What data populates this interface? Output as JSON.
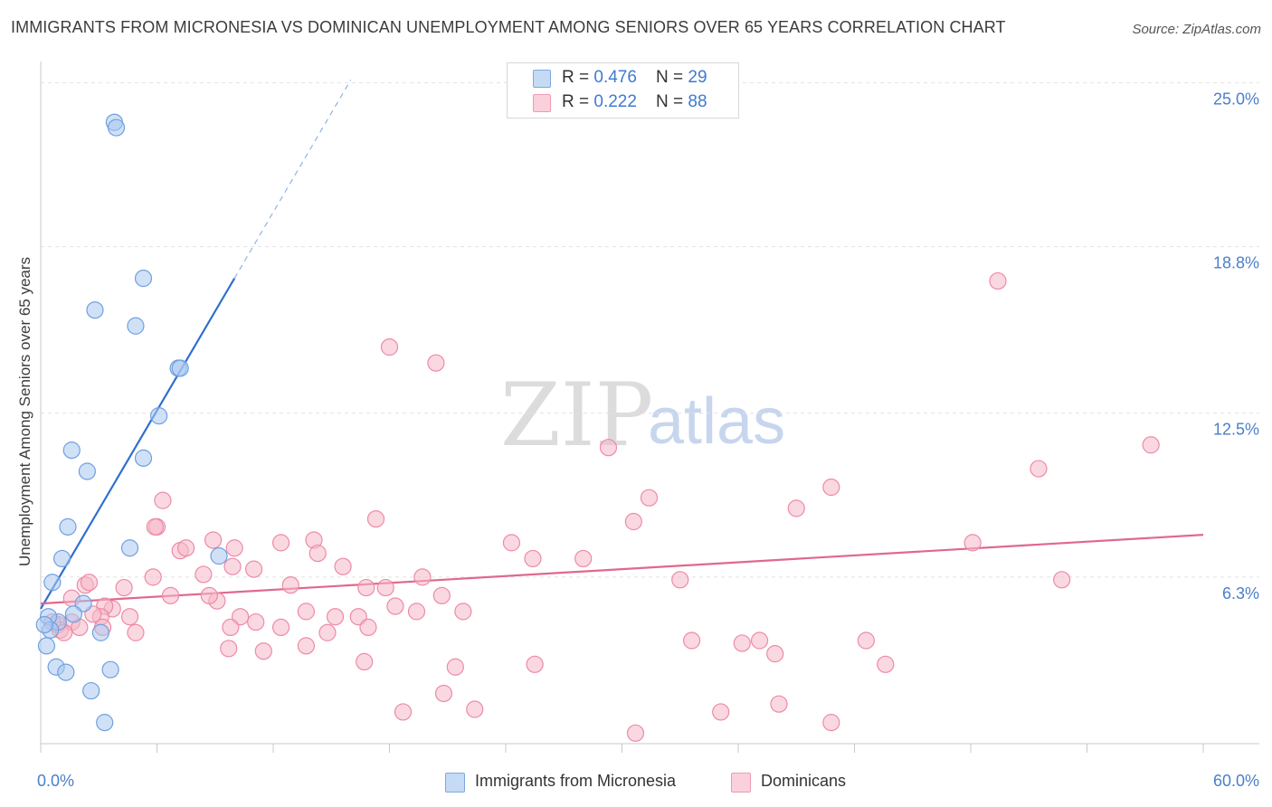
{
  "title": "IMMIGRANTS FROM MICRONESIA VS DOMINICAN UNEMPLOYMENT AMONG SENIORS OVER 65 YEARS CORRELATION CHART",
  "source": "Source: ZipAtlas.com",
  "watermark": {
    "zip": "ZIP",
    "atlas": "atlas"
  },
  "legend": {
    "rows": [
      {
        "r_label": "R = ",
        "r_value": "0.476",
        "n_label": "N = ",
        "n_value": "29",
        "color": "#a9c8f0"
      },
      {
        "r_label": "R = ",
        "r_value": "0.222",
        "n_label": "N = ",
        "n_value": "88",
        "color": "#f6b8c9"
      }
    ]
  },
  "bottom_legend": [
    {
      "label": "Immigrants from Micronesia",
      "color": "#a9c8f0"
    },
    {
      "label": "Dominicans",
      "color": "#f6b8c9"
    }
  ],
  "chart_data": {
    "type": "scatter",
    "title": "IMMIGRANTS FROM MICRONESIA VS DOMINICAN UNEMPLOYMENT AMONG SENIORS OVER 65 YEARS CORRELATION CHART",
    "xlabel": "",
    "ylabel": "Unemployment Among Seniors over 65 years",
    "xlim": [
      0,
      60
    ],
    "ylim": [
      0,
      25.8
    ],
    "x_tick_labels": [
      {
        "value": 0,
        "label": "0.0%"
      },
      {
        "value": 60,
        "label": "60.0%"
      }
    ],
    "y_tick_labels": [
      {
        "value": 6.3,
        "label": "6.3%"
      },
      {
        "value": 12.5,
        "label": "12.5%"
      },
      {
        "value": 18.8,
        "label": "18.8%"
      },
      {
        "value": 25.0,
        "label": "25.0%"
      }
    ],
    "grid": "horizontal dashed",
    "legend_position": "top-center",
    "series": [
      {
        "name": "Immigrants from Micronesia",
        "color": "#a9c8f0",
        "stroke": "#6fa0df",
        "trend_color": "#2f6fcf",
        "trend": {
          "x0": 0,
          "y0": 5.1,
          "x1": 10,
          "y1": 17.6,
          "dashed_to_x": 16
        },
        "points": [
          [
            3.8,
            23.5
          ],
          [
            3.9,
            23.3
          ],
          [
            5.3,
            17.6
          ],
          [
            2.8,
            16.4
          ],
          [
            4.9,
            15.8
          ],
          [
            7.1,
            14.2
          ],
          [
            7.2,
            14.2
          ],
          [
            6.1,
            12.4
          ],
          [
            1.6,
            11.1
          ],
          [
            5.3,
            10.8
          ],
          [
            2.4,
            10.3
          ],
          [
            1.4,
            8.2
          ],
          [
            4.6,
            7.4
          ],
          [
            1.1,
            7.0
          ],
          [
            9.2,
            7.1
          ],
          [
            0.6,
            6.1
          ],
          [
            2.2,
            5.3
          ],
          [
            1.7,
            4.9
          ],
          [
            0.9,
            4.6
          ],
          [
            0.4,
            4.8
          ],
          [
            0.5,
            4.3
          ],
          [
            0.2,
            4.5
          ],
          [
            3.1,
            4.2
          ],
          [
            0.3,
            3.7
          ],
          [
            0.8,
            2.9
          ],
          [
            1.3,
            2.7
          ],
          [
            3.6,
            2.8
          ],
          [
            2.6,
            2.0
          ],
          [
            3.3,
            0.8
          ]
        ]
      },
      {
        "name": "Dominicans",
        "color": "#f6b8c9",
        "stroke": "#ee8aa6",
        "trend_color": "#e0688e",
        "trend": {
          "x0": 0,
          "y0": 5.3,
          "x1": 60,
          "y1": 7.9
        },
        "points": [
          [
            49.4,
            17.5
          ],
          [
            18.0,
            15.0
          ],
          [
            20.4,
            14.4
          ],
          [
            57.3,
            11.3
          ],
          [
            29.3,
            11.2
          ],
          [
            51.5,
            10.4
          ],
          [
            40.8,
            9.7
          ],
          [
            31.4,
            9.3
          ],
          [
            39.0,
            8.9
          ],
          [
            6.3,
            9.2
          ],
          [
            17.3,
            8.5
          ],
          [
            30.6,
            8.4
          ],
          [
            6.0,
            8.2
          ],
          [
            5.9,
            8.2
          ],
          [
            8.9,
            7.7
          ],
          [
            24.3,
            7.6
          ],
          [
            12.4,
            7.6
          ],
          [
            14.1,
            7.7
          ],
          [
            10.0,
            7.4
          ],
          [
            7.2,
            7.3
          ],
          [
            7.5,
            7.4
          ],
          [
            14.3,
            7.2
          ],
          [
            25.4,
            7.0
          ],
          [
            28.0,
            7.0
          ],
          [
            48.1,
            7.6
          ],
          [
            15.6,
            6.7
          ],
          [
            11.0,
            6.6
          ],
          [
            9.9,
            6.7
          ],
          [
            8.4,
            6.4
          ],
          [
            5.8,
            6.3
          ],
          [
            19.7,
            6.3
          ],
          [
            33.0,
            6.2
          ],
          [
            52.7,
            6.2
          ],
          [
            2.3,
            6.0
          ],
          [
            2.5,
            6.1
          ],
          [
            12.9,
            6.0
          ],
          [
            16.8,
            5.9
          ],
          [
            17.8,
            5.9
          ],
          [
            4.3,
            5.9
          ],
          [
            20.7,
            5.6
          ],
          [
            6.7,
            5.6
          ],
          [
            9.1,
            5.4
          ],
          [
            8.7,
            5.6
          ],
          [
            1.6,
            5.5
          ],
          [
            3.7,
            5.1
          ],
          [
            3.3,
            5.2
          ],
          [
            18.3,
            5.2
          ],
          [
            13.7,
            5.0
          ],
          [
            3.1,
            4.8
          ],
          [
            10.3,
            4.8
          ],
          [
            2.7,
            4.9
          ],
          [
            15.2,
            4.8
          ],
          [
            16.4,
            4.8
          ],
          [
            19.4,
            5.0
          ],
          [
            21.8,
            5.0
          ],
          [
            1.6,
            4.6
          ],
          [
            4.6,
            4.8
          ],
          [
            11.1,
            4.6
          ],
          [
            12.4,
            4.4
          ],
          [
            16.9,
            4.4
          ],
          [
            0.9,
            4.5
          ],
          [
            9.8,
            4.4
          ],
          [
            14.8,
            4.2
          ],
          [
            1.0,
            4.3
          ],
          [
            0.6,
            4.6
          ],
          [
            1.2,
            4.2
          ],
          [
            3.2,
            4.4
          ],
          [
            4.9,
            4.2
          ],
          [
            2.0,
            4.4
          ],
          [
            13.7,
            3.7
          ],
          [
            11.5,
            3.5
          ],
          [
            16.7,
            3.1
          ],
          [
            33.6,
            3.9
          ],
          [
            36.2,
            3.8
          ],
          [
            42.6,
            3.9
          ],
          [
            37.9,
            3.4
          ],
          [
            25.5,
            3.0
          ],
          [
            21.4,
            2.9
          ],
          [
            38.1,
            1.5
          ],
          [
            18.7,
            1.2
          ],
          [
            22.4,
            1.3
          ],
          [
            20.8,
            1.9
          ],
          [
            35.1,
            1.2
          ],
          [
            40.8,
            0.8
          ],
          [
            30.7,
            0.4
          ],
          [
            37.1,
            3.9
          ],
          [
            43.6,
            3.0
          ],
          [
            9.7,
            3.6
          ]
        ]
      }
    ]
  }
}
